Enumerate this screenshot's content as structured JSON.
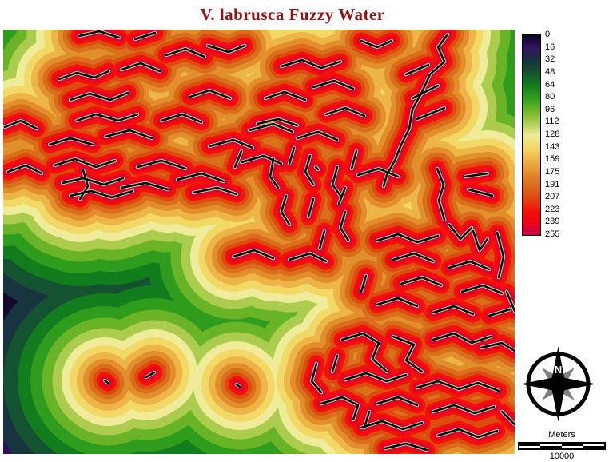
{
  "title": {
    "text": "V. labrusca Fuzzy Water",
    "color": "#951212"
  },
  "legend": {
    "entries": [
      {
        "value": "0",
        "color": "#0d0721"
      },
      {
        "value": "16",
        "color": "#33125e"
      },
      {
        "value": "32",
        "color": "#17343f"
      },
      {
        "value": "48",
        "color": "#14532f"
      },
      {
        "value": "64",
        "color": "#117d1d"
      },
      {
        "value": "80",
        "color": "#2f9c1d"
      },
      {
        "value": "96",
        "color": "#69b426"
      },
      {
        "value": "112",
        "color": "#abcc4e"
      },
      {
        "value": "128",
        "color": "#eeeb99"
      },
      {
        "value": "143",
        "color": "#f2d967"
      },
      {
        "value": "159",
        "color": "#edb448"
      },
      {
        "value": "175",
        "color": "#e38e2d"
      },
      {
        "value": "191",
        "color": "#d96e1b"
      },
      {
        "value": "207",
        "color": "#dd4b10"
      },
      {
        "value": "223",
        "color": "#f31207"
      },
      {
        "value": "239",
        "color": "#f00418"
      },
      {
        "value": "255",
        "color": "#c3034e"
      }
    ]
  },
  "map": {
    "stream_color": "#000000",
    "stream_halo_color": "#cde06a"
  },
  "compass": {
    "north_label": "N"
  },
  "scale_bar": {
    "units_label": "Meters",
    "distance_label": "10000"
  }
}
